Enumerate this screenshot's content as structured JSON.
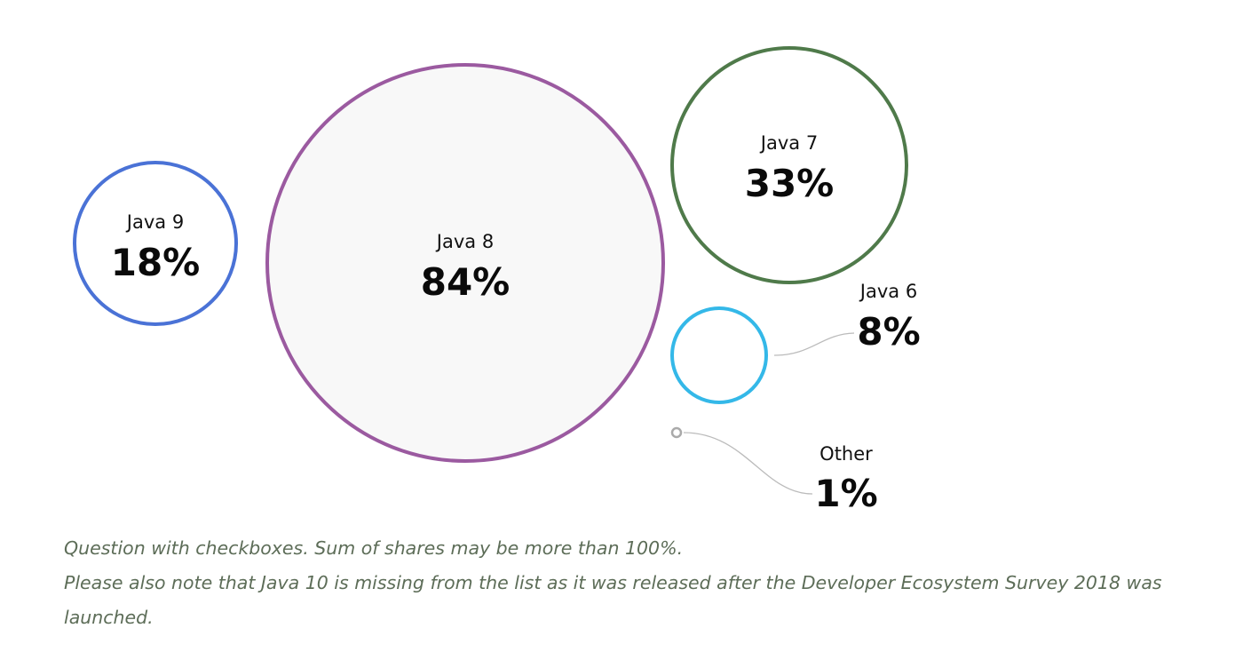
{
  "chart_data": {
    "type": "bubble",
    "series": [
      {
        "name": "Java 9",
        "value_label": "18%",
        "value": 18,
        "color": "#4a72d6"
      },
      {
        "name": "Java 8",
        "value_label": "84%",
        "value": 84,
        "color": "#9b5aa0"
      },
      {
        "name": "Java 7",
        "value_label": "33%",
        "value": 33,
        "color": "#4f7a4a"
      },
      {
        "name": "Java 6",
        "value_label": "8%",
        "value": 8,
        "color": "#34b8e8"
      },
      {
        "name": "Other",
        "value_label": "1%",
        "value": 1,
        "color": "#aaaaaa"
      }
    ]
  },
  "footnote": {
    "line1": "Question with checkboxes. Sum of shares may be more than 100%.",
    "line2": "Please also note that Java 10 is missing from the list as it was released after the Developer Ecosystem Survey 2018 was launched."
  }
}
